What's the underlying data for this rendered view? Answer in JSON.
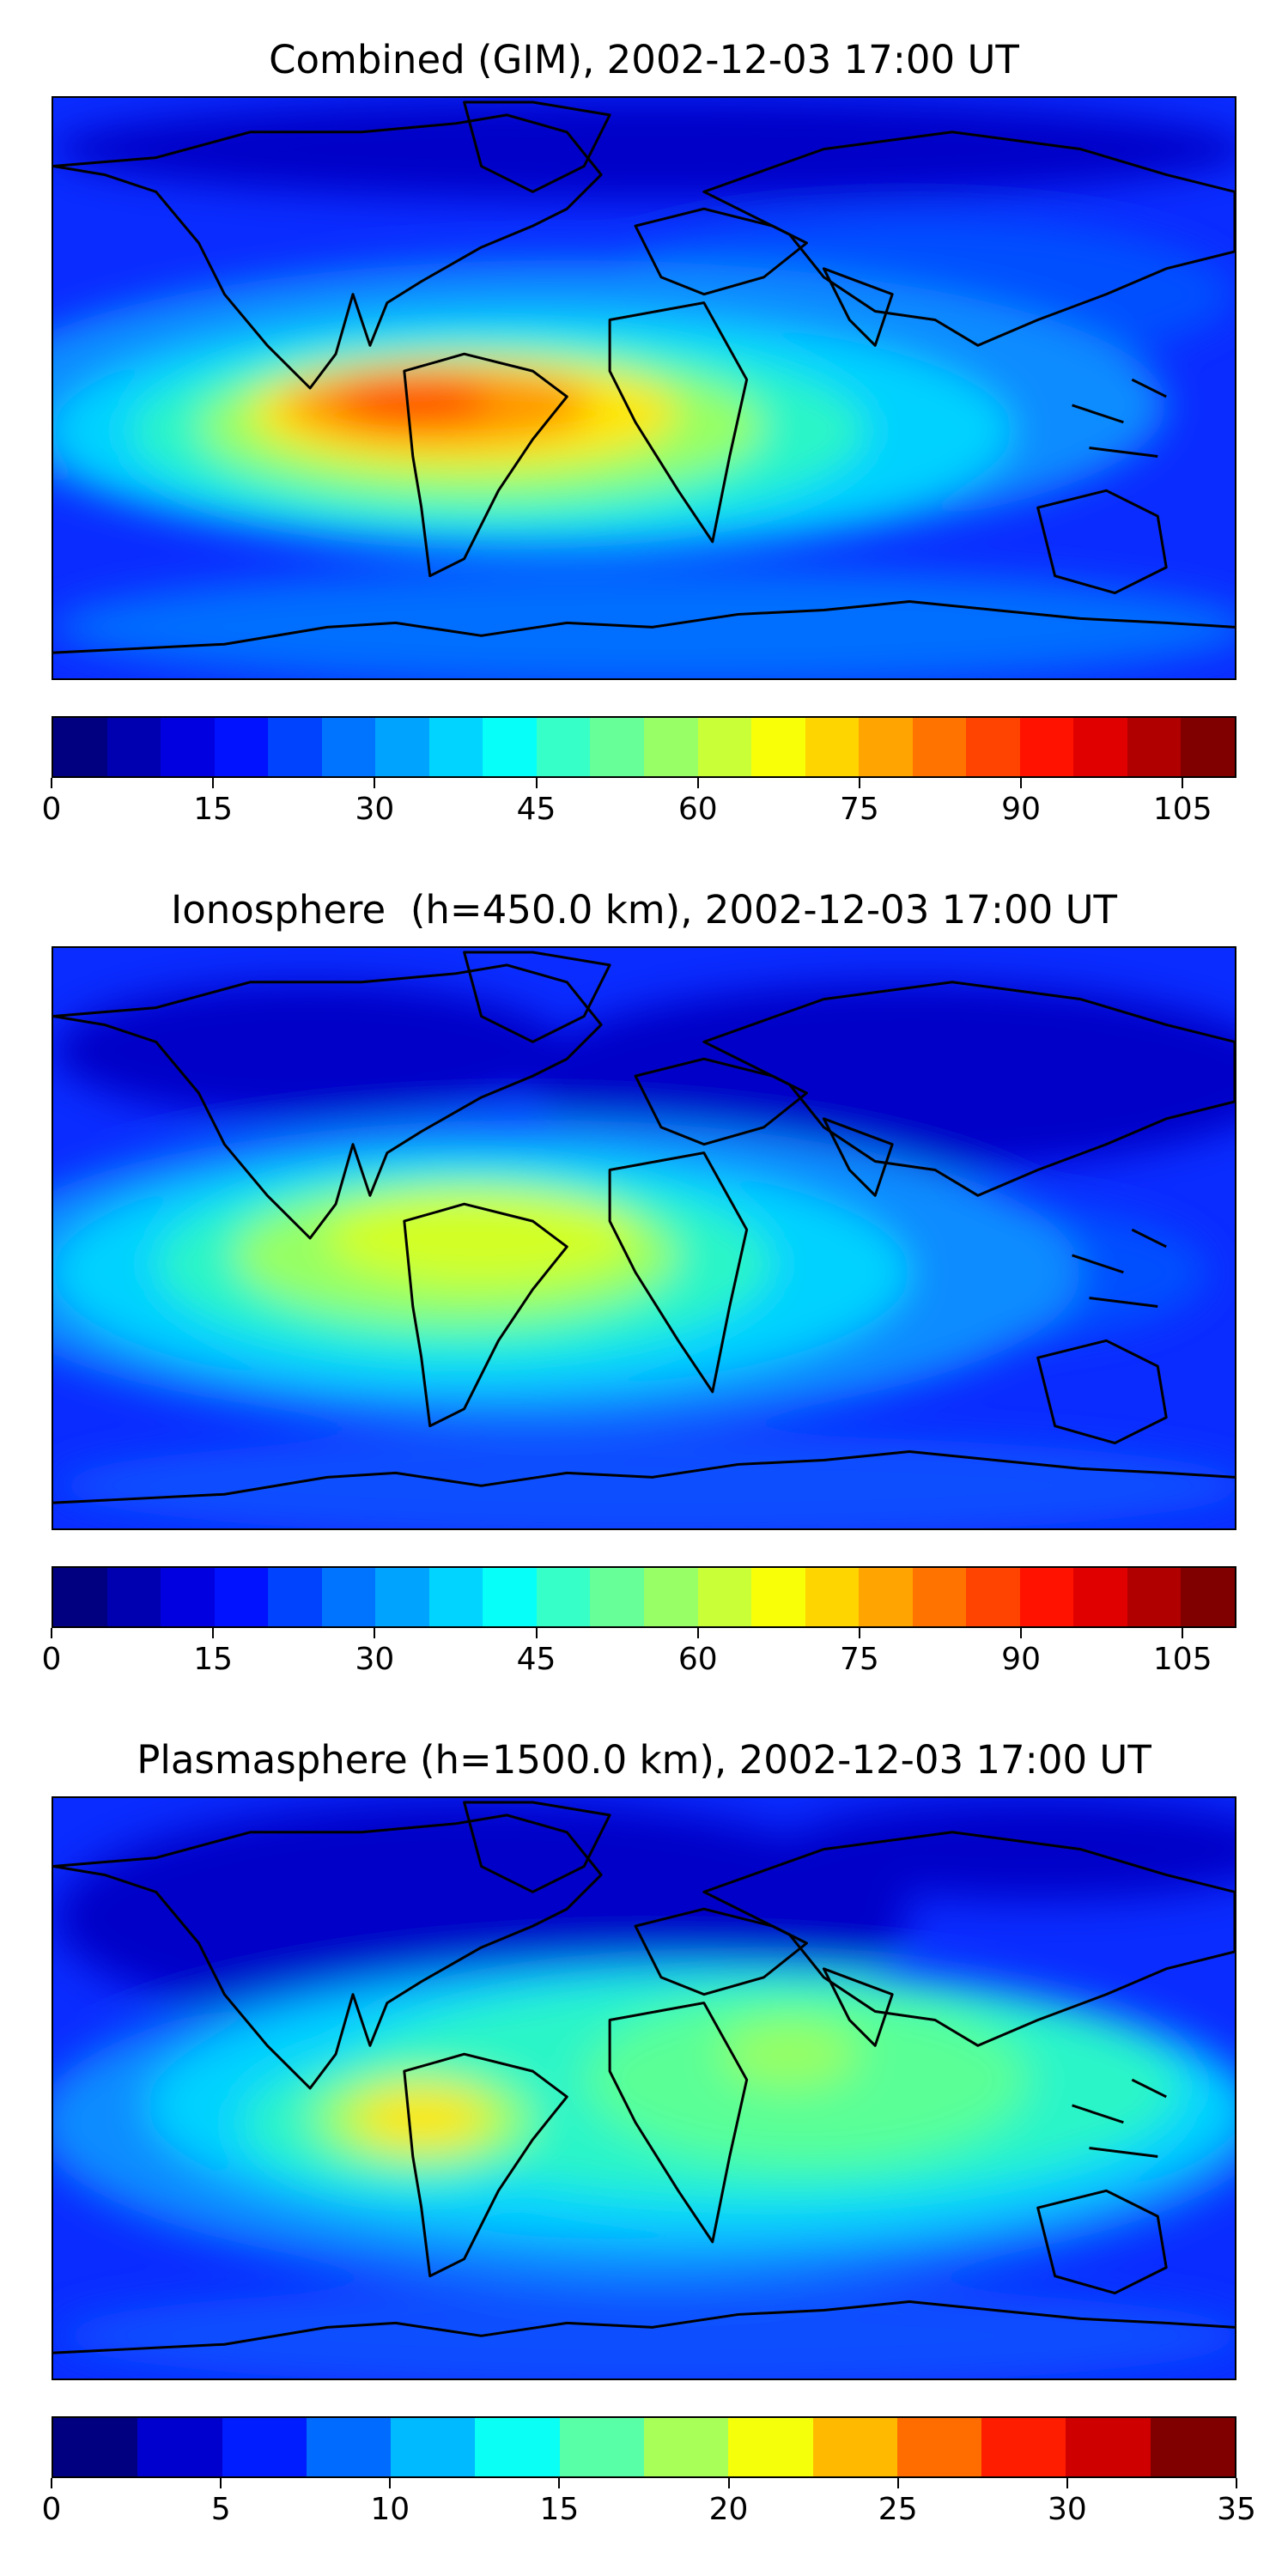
{
  "panels": [
    {
      "title": "Combined (GIM), 2002-12-03 17:00 UT",
      "scale": {
        "min": 0,
        "max": 110,
        "step": 5,
        "ticks": [
          "0",
          "15",
          "30",
          "45",
          "60",
          "75",
          "90",
          "105"
        ],
        "tick_values": [
          0,
          15,
          30,
          45,
          60,
          75,
          90,
          105
        ]
      }
    },
    {
      "title": "Ionosphere  (h=450.0 km), 2002-12-03 17:00 UT",
      "scale": {
        "min": 0,
        "max": 110,
        "step": 5,
        "ticks": [
          "0",
          "15",
          "30",
          "45",
          "60",
          "75",
          "90",
          "105"
        ],
        "tick_values": [
          0,
          15,
          30,
          45,
          60,
          75,
          90,
          105
        ]
      }
    },
    {
      "title": "Plasmasphere (h=1500.0 km), 2002-12-03 17:00 UT",
      "scale": {
        "min": 0,
        "max": 35,
        "step": 2.5,
        "ticks": [
          "0",
          "5",
          "10",
          "15",
          "20",
          "25",
          "30",
          "35"
        ],
        "tick_values": [
          0,
          5,
          10,
          15,
          20,
          25,
          30,
          35
        ]
      }
    }
  ],
  "colormap": "jet"
}
